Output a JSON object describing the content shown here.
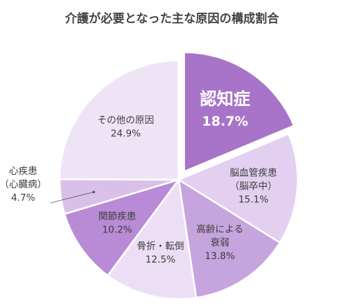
{
  "chart_data": {
    "type": "pie",
    "title": "介護が必要となった主な原因の構成割合",
    "unit": "%",
    "slices": [
      {
        "name": "認知症",
        "label_lines": [
          "認知症"
        ],
        "value": 18.7,
        "value_text": "18.7%",
        "color": "#a774c9",
        "highlight": true
      },
      {
        "name": "脳血管疾患（脳卒中）",
        "label_lines": [
          "脳血管疾患",
          "（脳卒中）"
        ],
        "value": 15.1,
        "value_text": "15.1%",
        "color": "#e3cff0"
      },
      {
        "name": "高齢による衰弱",
        "label_lines": [
          "高齢による",
          "衰弱"
        ],
        "value": 13.8,
        "value_text": "13.8%",
        "color": "#c6a4dd"
      },
      {
        "name": "骨折・転倒",
        "label_lines": [
          "骨折・転倒"
        ],
        "value": 12.5,
        "value_text": "12.5%",
        "color": "#ecdff5"
      },
      {
        "name": "関節疾患",
        "label_lines": [
          "関節疾患"
        ],
        "value": 10.2,
        "value_text": "10.2%",
        "color": "#b98bd6"
      },
      {
        "name": "心疾患（心臓病）",
        "label_lines": [
          "心疾患",
          "（心臓病）"
        ],
        "value": 4.7,
        "value_text": "4.7%",
        "color": "#d9c0e9",
        "outside": true
      },
      {
        "name": "その他の原因",
        "label_lines": [
          "その他の原因"
        ],
        "value": 24.9,
        "value_text": "24.9%",
        "color": "#efe4f6"
      }
    ]
  }
}
